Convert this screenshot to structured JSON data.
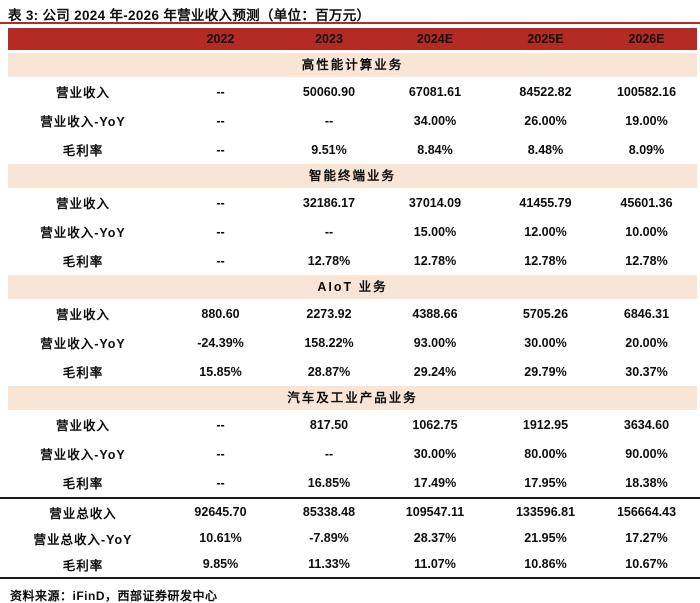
{
  "title": "表 3: 公司 2024 年-2026 年营业收入预测（单位：百万元）",
  "source_note": "资料来源：iFinD，西部证券研发中心",
  "colors": {
    "header_bg": "#B32B24",
    "section_band_bg": "#F8E5D5",
    "top_rule": "#B32B24",
    "bottom_rules": "#1A1A1A",
    "text": "#0D0D0D"
  },
  "table": {
    "columns": [
      "",
      "2022",
      "2023",
      "2024E",
      "2025E",
      "2026E"
    ],
    "sections": [
      {
        "name": "高性能计算业务",
        "rows": [
          {
            "label": "营业收入",
            "values": [
              "--",
              "50060.90",
              "67081.61",
              "84522.82",
              "100582.16"
            ]
          },
          {
            "label": "营业收入-YoY",
            "values": [
              "--",
              "--",
              "34.00%",
              "26.00%",
              "19.00%"
            ]
          },
          {
            "label": "毛利率",
            "values": [
              "--",
              "9.51%",
              "8.84%",
              "8.48%",
              "8.09%"
            ]
          }
        ]
      },
      {
        "name": "智能终端业务",
        "rows": [
          {
            "label": "营业收入",
            "values": [
              "--",
              "32186.17",
              "37014.09",
              "41455.79",
              "45601.36"
            ]
          },
          {
            "label": "营业收入-YoY",
            "values": [
              "--",
              "--",
              "15.00%",
              "12.00%",
              "10.00%"
            ]
          },
          {
            "label": "毛利率",
            "values": [
              "--",
              "12.78%",
              "12.78%",
              "12.78%",
              "12.78%"
            ]
          }
        ]
      },
      {
        "name": "AIoT 业务",
        "rows": [
          {
            "label": "营业收入",
            "values": [
              "880.60",
              "2273.92",
              "4388.66",
              "5705.26",
              "6846.31"
            ]
          },
          {
            "label": "营业收入-YoY",
            "values": [
              "-24.39%",
              "158.22%",
              "93.00%",
              "30.00%",
              "20.00%"
            ]
          },
          {
            "label": "毛利率",
            "values": [
              "15.85%",
              "28.87%",
              "29.24%",
              "29.79%",
              "30.37%"
            ]
          }
        ]
      },
      {
        "name": "汽车及工业产品业务",
        "rows": [
          {
            "label": "营业收入",
            "values": [
              "--",
              "817.50",
              "1062.75",
              "1912.95",
              "3634.60"
            ]
          },
          {
            "label": "营业收入-YoY",
            "values": [
              "--",
              "--",
              "30.00%",
              "80.00%",
              "90.00%"
            ]
          },
          {
            "label": "毛利率",
            "values": [
              "--",
              "16.85%",
              "17.49%",
              "17.95%",
              "18.38%"
            ]
          }
        ]
      }
    ],
    "totals": [
      {
        "label": "营业总收入",
        "values": [
          "92645.70",
          "85338.48",
          "109547.11",
          "133596.81",
          "156664.43"
        ]
      },
      {
        "label": "营业总收入-YoY",
        "values": [
          "10.61%",
          "-7.89%",
          "28.37%",
          "21.95%",
          "17.27%"
        ]
      },
      {
        "label": "毛利率",
        "values": [
          "9.85%",
          "11.33%",
          "11.07%",
          "10.86%",
          "10.67%"
        ]
      }
    ]
  }
}
